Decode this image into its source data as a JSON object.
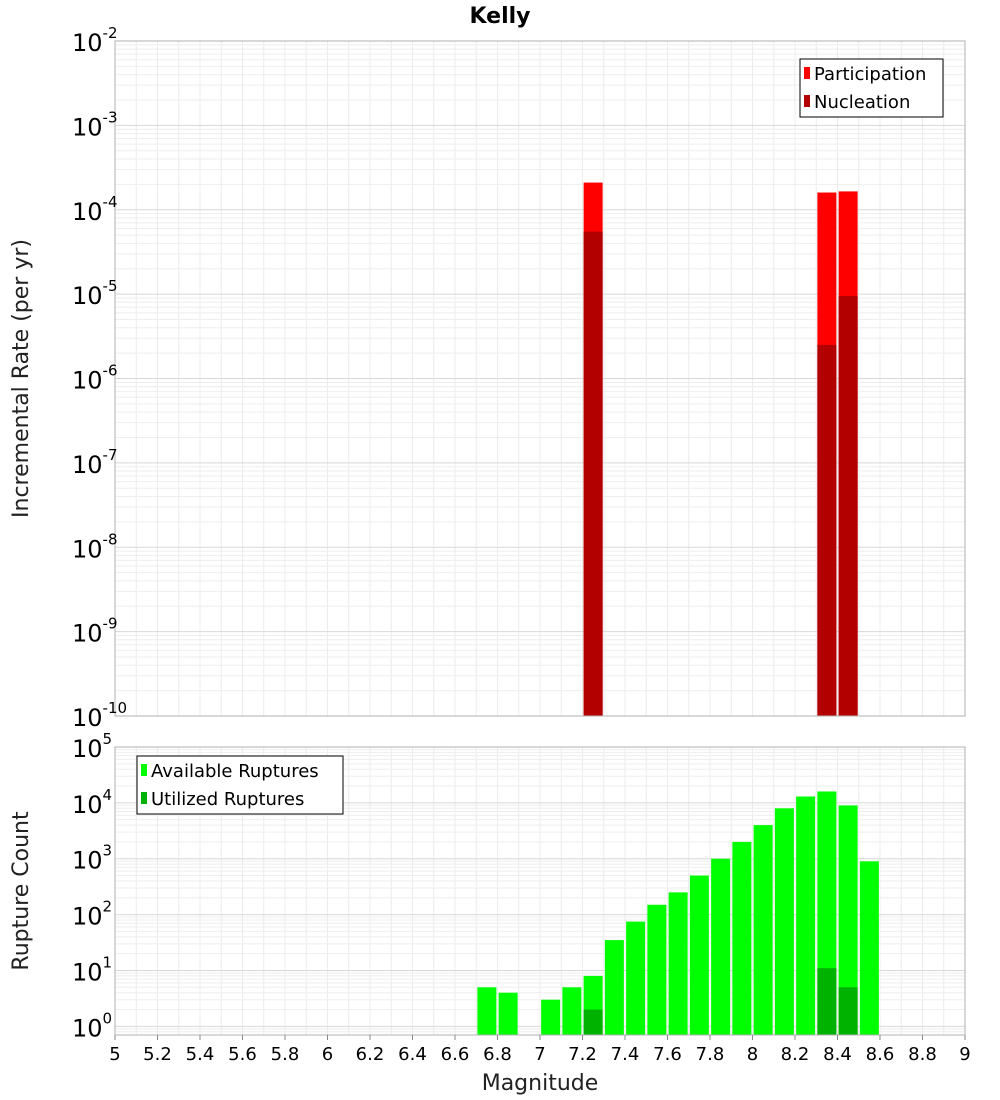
{
  "chart_data": [
    {
      "type": "bar",
      "title": "Kelly",
      "ylabel": "Incremental Rate (per yr)",
      "xlabel": "",
      "xlim": [
        5,
        9
      ],
      "ylim": [
        1e-10,
        0.01
      ],
      "y_scale": "log",
      "x_ticks": [
        "5",
        "5.2",
        "5.4",
        "5.6",
        "5.8",
        "6",
        "6.2",
        "6.4",
        "6.6",
        "6.8",
        "7",
        "7.2",
        "7.4",
        "7.6",
        "7.8",
        "8",
        "8.2",
        "8.4",
        "8.6",
        "8.8",
        "9"
      ],
      "y_tick_exponents": [
        "-10",
        "-9",
        "-8",
        "-7",
        "-6",
        "-5",
        "-4",
        "-3",
        "-2"
      ],
      "y_tick_base": "10",
      "grid": true,
      "legend_placement": "top-right",
      "series": [
        {
          "name": "Participation",
          "color": "#ff0000",
          "x": [
            7.25,
            8.35,
            8.45
          ],
          "values": [
            0.00021,
            0.00016,
            0.000165
          ]
        },
        {
          "name": "Nucleation",
          "color": "#b20000",
          "x": [
            7.25,
            8.35,
            8.45
          ],
          "values": [
            5.5e-05,
            2.5e-06,
            9.5e-06
          ]
        }
      ]
    },
    {
      "type": "bar",
      "title": "",
      "ylabel": "Rupture Count",
      "xlabel": "Magnitude",
      "xlim": [
        5,
        9
      ],
      "ylim": [
        0.7,
        100000.0
      ],
      "y_scale": "log",
      "x_ticks": [
        "5",
        "5.2",
        "5.4",
        "5.6",
        "5.8",
        "6",
        "6.2",
        "6.4",
        "6.6",
        "6.8",
        "7",
        "7.2",
        "7.4",
        "7.6",
        "7.8",
        "8",
        "8.2",
        "8.4",
        "8.6",
        "8.8",
        "9"
      ],
      "y_tick_exponents": [
        "0",
        "1",
        "2",
        "3",
        "4",
        "5"
      ],
      "y_tick_base": "10",
      "grid": true,
      "legend_placement": "top-left",
      "series": [
        {
          "name": "Available Ruptures",
          "color": "#00ff00",
          "x": [
            6.75,
            6.85,
            7.05,
            7.15,
            7.25,
            7.35,
            7.45,
            7.55,
            7.65,
            7.75,
            7.85,
            7.95,
            8.05,
            8.15,
            8.25,
            8.35,
            8.45,
            8.55
          ],
          "values": [
            5,
            4,
            3,
            5,
            8,
            35,
            75,
            150,
            250,
            500,
            1000,
            2000,
            4000,
            8000,
            13000,
            16000,
            9000,
            900
          ]
        },
        {
          "name": "Utilized Ruptures",
          "color": "#00b200",
          "x": [
            7.25,
            8.35,
            8.45
          ],
          "values": [
            2,
            11,
            5
          ]
        }
      ]
    }
  ]
}
